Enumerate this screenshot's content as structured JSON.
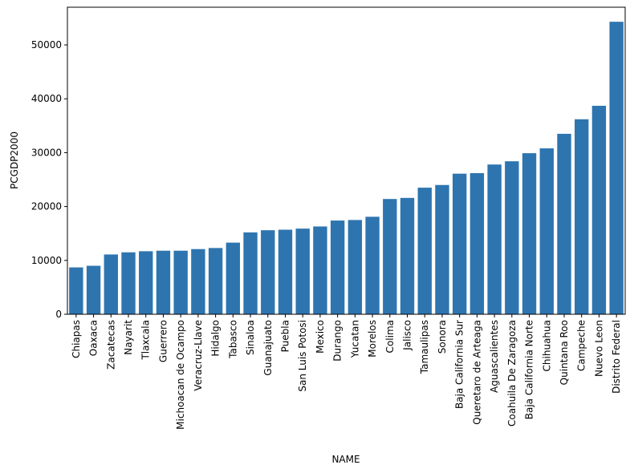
{
  "chart_data": {
    "type": "bar",
    "xlabel": "NAME",
    "ylabel": "PCGDP2000",
    "bar_color": "#2e75b0",
    "ylim": [
      0,
      57000
    ],
    "yticks": [
      0,
      10000,
      20000,
      30000,
      40000,
      50000
    ],
    "categories": [
      "Chiapas",
      "Oaxaca",
      "Zacatecas",
      "Nayarit",
      "Tlaxcala",
      "Guerrero",
      "Michoacan de Ocampo",
      "Veracruz-Llave",
      "Hidalgo",
      "Tabasco",
      "Sinaloa",
      "Guanajuato",
      "Puebla",
      "San Luis Potosi",
      "Mexico",
      "Durango",
      "Yucatan",
      "Morelos",
      "Colima",
      "Jalisco",
      "Tamaulipas",
      "Sonora",
      "Baja California Sur",
      "Queretaro de Arteaga",
      "Aguascalientes",
      "Coahuila De Zaragoza",
      "Baja California Norte",
      "Chihuahua",
      "Quintana Roo",
      "Campeche",
      "Nuevo Leon",
      "Distrito Federal"
    ],
    "values": [
      8700,
      9000,
      11100,
      11500,
      11700,
      11800,
      11800,
      12100,
      12300,
      13300,
      15200,
      15600,
      15700,
      15900,
      16300,
      17400,
      17500,
      18100,
      21400,
      21600,
      23500,
      24000,
      26100,
      26200,
      27800,
      28400,
      29900,
      30800,
      33500,
      36200,
      38700,
      54300
    ]
  }
}
